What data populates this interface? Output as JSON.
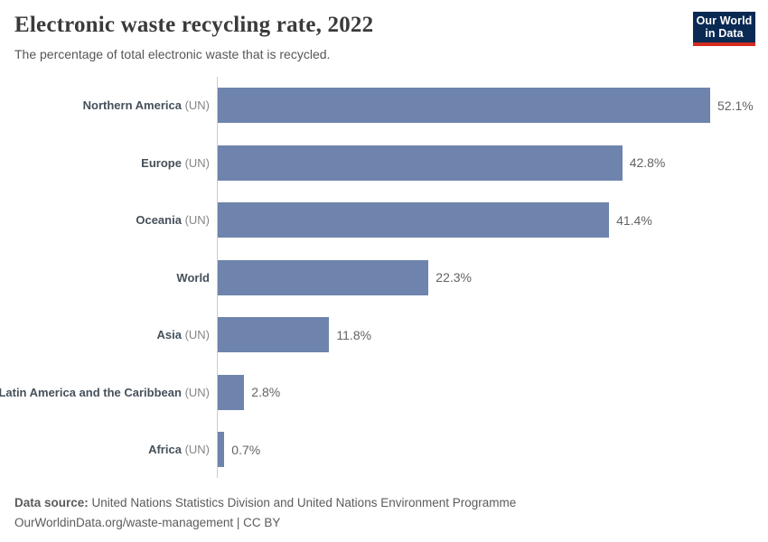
{
  "header": {
    "title": "Electronic waste recycling rate, 2022",
    "subtitle": "The percentage of total electronic waste that is recycled.",
    "logo": {
      "line1": "Our World",
      "line2": "in Data"
    }
  },
  "chart_data": {
    "type": "bar",
    "orientation": "horizontal",
    "title": "Electronic waste recycling rate, 2022",
    "subtitle": "The percentage of total electronic waste that is recycled.",
    "unit": "%",
    "xlim": [
      0,
      55
    ],
    "grid": false,
    "legend": false,
    "value_labels_shown": true,
    "categories": [
      "Northern America (UN)",
      "Europe (UN)",
      "Oceania (UN)",
      "World",
      "Asia (UN)",
      "Latin America and the Caribbean (UN)",
      "Africa (UN)"
    ],
    "values": [
      52.1,
      42.8,
      41.4,
      22.3,
      11.8,
      2.8,
      0.7
    ],
    "series": [
      {
        "label": "Northern America",
        "suffix": "(UN)",
        "value": 52.1,
        "value_display": "52.1%"
      },
      {
        "label": "Europe",
        "suffix": "(UN)",
        "value": 42.8,
        "value_display": "42.8%"
      },
      {
        "label": "Oceania",
        "suffix": "(UN)",
        "value": 41.4,
        "value_display": "41.4%"
      },
      {
        "label": "World",
        "suffix": "",
        "value": 22.3,
        "value_display": "22.3%"
      },
      {
        "label": "Asia",
        "suffix": "(UN)",
        "value": 11.8,
        "value_display": "11.8%"
      },
      {
        "label": "Latin America and the Caribbean",
        "suffix": "(UN)",
        "value": 2.8,
        "value_display": "2.8%"
      },
      {
        "label": "Africa",
        "suffix": "(UN)",
        "value": 0.7,
        "value_display": "0.7%"
      }
    ]
  },
  "footer": {
    "data_source_label": "Data source:",
    "data_source_value": "United Nations Statistics Division and United Nations Environment Programme",
    "attribution": "OurWorldinData.org/waste-management | CC BY"
  },
  "colors": {
    "bar": "#6e84ad",
    "axis_line": "#cccccc",
    "title_text": "#3a3a3a",
    "subtitle_text": "#565656",
    "category_label": "#45505a",
    "category_suffix": "#858585",
    "value_label": "#636363",
    "footer_text": "#5b5b5b",
    "logo_background": "#0a2a53",
    "logo_accent_red": "#d42b21",
    "logo_text": "#ffffff"
  }
}
